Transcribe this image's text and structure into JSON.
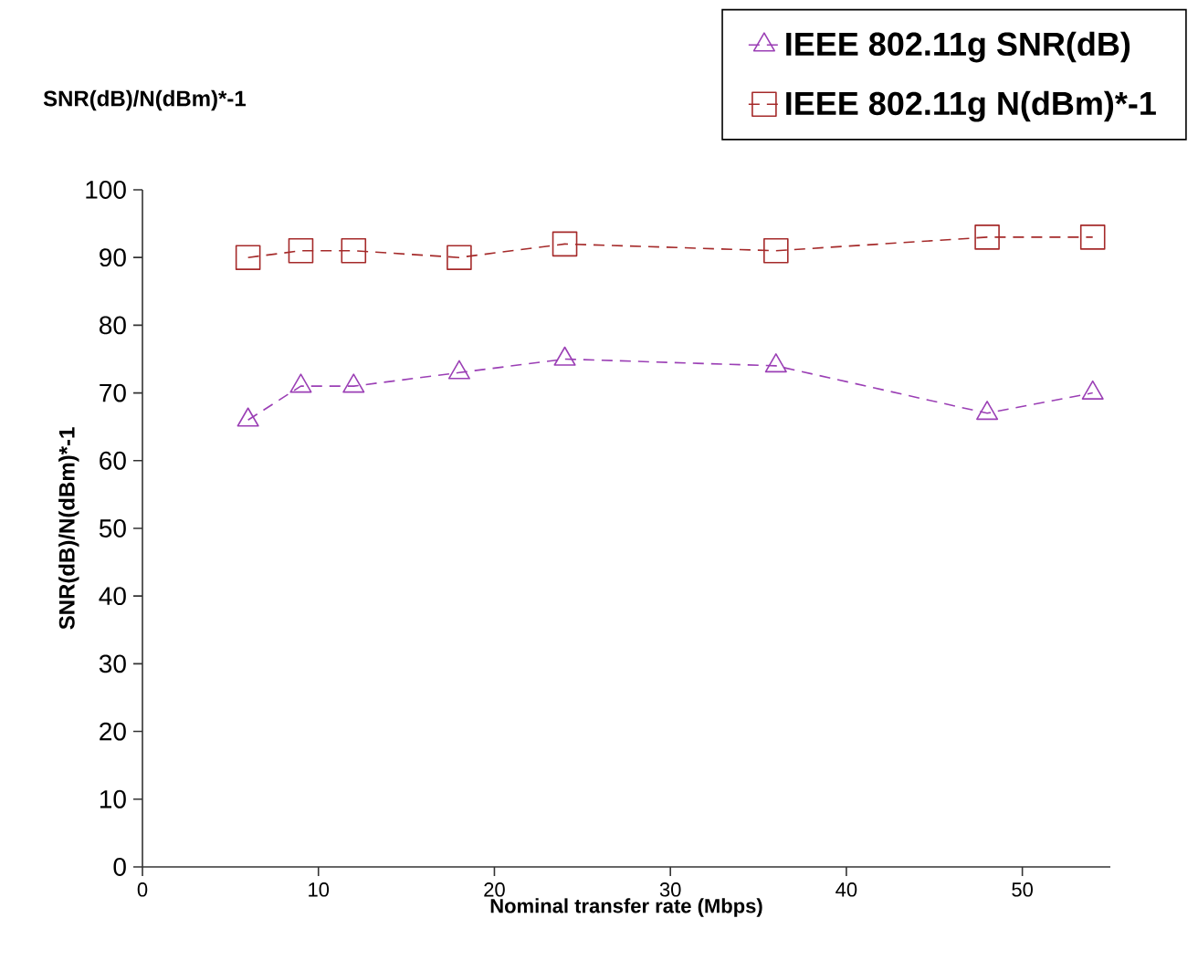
{
  "chart_data": {
    "type": "line",
    "title": "SNR(dB)/N(dBm)*-1",
    "xlabel": "Nominal transfer rate (Mbps)",
    "ylabel": "SNR(dB)/N(dBm)*-1",
    "x": [
      6,
      9,
      12,
      18,
      24,
      36,
      48,
      54
    ],
    "series": [
      {
        "name": "IEEE 802.11g SNR(dB)",
        "color": "#9b3fb5",
        "marker": "triangle",
        "values": [
          66,
          71,
          71,
          73,
          75,
          74,
          67,
          70
        ]
      },
      {
        "name": "IEEE 802.11g N(dBm)*-1",
        "color": "#a52a2a",
        "marker": "square",
        "values": [
          90,
          91,
          91,
          90,
          92,
          91,
          93,
          93
        ]
      }
    ],
    "xlim": [
      0,
      55
    ],
    "xticks": [
      0,
      10,
      20,
      30,
      40,
      50
    ],
    "ylim": [
      0,
      100
    ],
    "yticks": [
      0,
      10,
      20,
      30,
      40,
      50,
      60,
      70,
      80,
      90,
      100
    ],
    "line_style": "dashed",
    "grid": false,
    "legend": "top right"
  }
}
